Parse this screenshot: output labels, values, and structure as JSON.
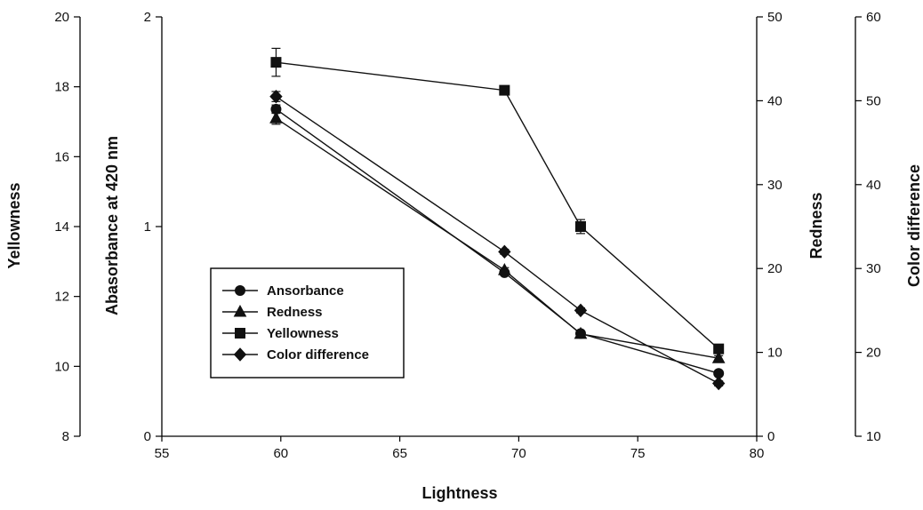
{
  "chart_data": {
    "type": "line",
    "xlabel": "Lightness",
    "xlim": [
      55,
      80
    ],
    "x_ticks": [
      "55",
      "60",
      "65",
      "70",
      "75",
      "80"
    ],
    "axes": {
      "yellowness": {
        "label": "Yellowness",
        "lim": [
          8,
          20
        ],
        "ticks": [
          "8",
          "10",
          "12",
          "14",
          "16",
          "18",
          "20"
        ],
        "position": "far-left"
      },
      "absorbance": {
        "label": "Abasorbance at 420 nm",
        "lim": [
          0,
          2
        ],
        "ticks": [
          "0",
          "1",
          "2"
        ],
        "position": "left"
      },
      "redness": {
        "label": "Redness",
        "lim": [
          0,
          50
        ],
        "ticks": [
          "0",
          "10",
          "20",
          "30",
          "40",
          "50"
        ],
        "position": "right"
      },
      "color_difference": {
        "label": "Color difference",
        "lim": [
          10,
          60
        ],
        "ticks": [
          "10",
          "20",
          "30",
          "40",
          "50",
          "60"
        ],
        "position": "far-right"
      }
    },
    "series": [
      {
        "name": "Ansorbance",
        "marker": "circle",
        "axis": "absorbance",
        "x": [
          59.8,
          69.4,
          72.6,
          78.4
        ],
        "y": [
          1.56,
          0.78,
          0.49,
          0.3
        ],
        "error": [
          0.02,
          0.01,
          0.01,
          0.01
        ]
      },
      {
        "name": "Redness",
        "marker": "triangle",
        "axis": "redness",
        "x": [
          59.8,
          69.4,
          72.6,
          78.4
        ],
        "y": [
          37.9,
          19.8,
          12.2,
          9.3
        ],
        "error": [
          0.7,
          0.3,
          0.3,
          0.3
        ]
      },
      {
        "name": "Yellowness",
        "marker": "square",
        "axis": "yellowness",
        "x": [
          59.8,
          69.4,
          72.6,
          78.4
        ],
        "y": [
          18.7,
          17.9,
          14.0,
          10.5
        ],
        "error": [
          0.4,
          0.1,
          0.2,
          0.1
        ]
      },
      {
        "name": "Color difference",
        "marker": "diamond",
        "axis": "color_difference",
        "x": [
          59.8,
          69.4,
          72.6,
          78.4
        ],
        "y": [
          50.5,
          32.0,
          25.0,
          16.3
        ],
        "error": [
          0.6,
          0.3,
          0.3,
          0.3
        ]
      }
    ],
    "legend": "inside-left",
    "grid": false
  }
}
